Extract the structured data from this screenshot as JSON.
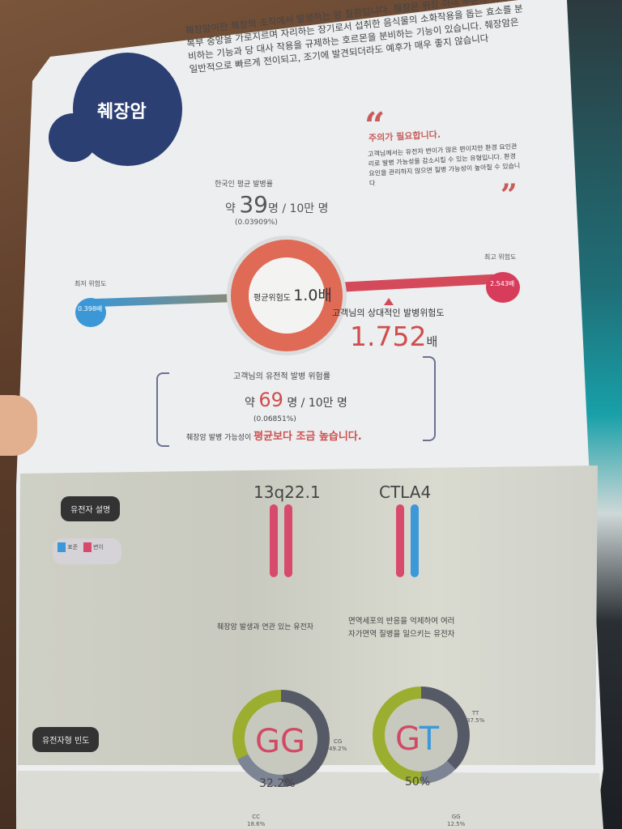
{
  "header": {
    "title": "췌장암",
    "intro": "췌장암이란 췌장의 조직에서 발생하는 암 질환입니다. 췌장은 위장 아래 부분의 뒤쪽에 복부 중앙을 가로지르며 자리하는 장기로서 섭취한 음식물의 소화작용을 돕는 효소를 분비하는 기능과 당 대사 작용을 규제하는 호르몬을 분비하는 기능이 있습니다. 췌장암은 일반적으로 빠르게 전이되고, 조기에 발견되더라도 예후가 매우 좋지 않습니다"
  },
  "caution": {
    "open_quote": "“",
    "close_quote": "”",
    "title": "주의가 필요합니다.",
    "body": "고객님께서는 유전자 변이가 많은 편이지만 환경 요인관리로 발병 가능성을 감소시킬 수 있는 유형입니다. 환경 요인을 관리하지 않으면 질병 가능성이 높아질 수 있습니다"
  },
  "average": {
    "label": "한국인 평균 발병률",
    "prefix": "약 ",
    "value": "39",
    "suffix": "명 / 10만 명",
    "percent": "(0.03909%)"
  },
  "risk_scale": {
    "min_label": "최저 위험도",
    "min_value": "0.398배",
    "max_label": "최고 위험도",
    "max_value": "2.543배",
    "center_label": "평균위험도 ",
    "center_value": "1.0배",
    "relative_label": "고객님의 상대적인 발병위험도",
    "relative_value": "1.752",
    "relative_unit": "배",
    "relative_numeric": 1.752,
    "colors": {
      "low": "#3b97d6",
      "high": "#d83c5b",
      "ring": "#df6a55"
    }
  },
  "genetic": {
    "label": "고객님의 유전적 발병 위험률",
    "prefix": "약 ",
    "value": "69",
    "suffix": " 명 / 10만 명",
    "percent": "(0.06851%)",
    "message_prefix": "췌장암 발병 가능성이 ",
    "message_highlight": "평균보다 조금 높습니다."
  },
  "genes": {
    "section_label": "유전자 설명",
    "legend": [
      {
        "label": "표준",
        "color": "#3c98d8"
      },
      {
        "label": "변이",
        "color": "#d84a6b"
      }
    ],
    "items": [
      {
        "name": "13q22.1",
        "description": "췌장암 발생과 연관 있는 유전자"
      },
      {
        "name": "CTLA4",
        "description_line1": "면역세포의 반응을 억제하여 여러",
        "description_line2": "자가면역 질병을 일으키는 유전자"
      }
    ]
  },
  "frequency": {
    "section_label": "유전자형 빈도",
    "items": [
      {
        "genotype": "GG",
        "genotype_a": "G",
        "genotype_b": "G",
        "percent": "32.2%",
        "others": [
          {
            "label": "CG",
            "percent": "49.2%"
          },
          {
            "label": "CC",
            "percent": "18.6%"
          }
        ]
      },
      {
        "genotype": "GT",
        "genotype_a": "G",
        "genotype_b": "T",
        "percent": "50%",
        "others": [
          {
            "label": "TT",
            "percent": "37.5%"
          },
          {
            "label": "GG",
            "percent": "12.5%"
          }
        ]
      }
    ]
  }
}
